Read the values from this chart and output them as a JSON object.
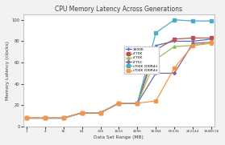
{
  "title": "CPU Memory Latency Across Generations",
  "xlabel": "Data Set Range (MB)",
  "ylabel": "Memory Latency (clocks)",
  "x_labels": [
    "1",
    "4",
    "16",
    "64",
    "256",
    "1024",
    "4096",
    "16384",
    "65536",
    "262144",
    "1048576"
  ],
  "x_values": [
    1,
    4,
    16,
    64,
    256,
    1024,
    4096,
    16384,
    65536,
    262144,
    1048576
  ],
  "series": [
    {
      "label": "2600K",
      "color": "#4472C4",
      "marker": "+",
      "markersize": 3.0,
      "values": [
        8,
        8,
        8,
        13,
        13,
        22,
        22,
        76,
        80,
        80,
        82
      ]
    },
    {
      "label": "i770K",
      "color": "#C0504D",
      "marker": "s",
      "markersize": 2.5,
      "values": [
        8,
        8,
        8,
        13,
        13,
        22,
        22,
        72,
        82,
        83,
        83
      ]
    },
    {
      "label": "i770K",
      "color": "#9BBB59",
      "marker": "^",
      "markersize": 2.5,
      "values": [
        8,
        8,
        8,
        13,
        13,
        22,
        22,
        63,
        75,
        76,
        78
      ]
    },
    {
      "label": "i775C",
      "color": "#8064A2",
      "marker": "D",
      "markersize": 2.0,
      "values": [
        8,
        8,
        8,
        13,
        13,
        22,
        22,
        50,
        50,
        78,
        79
      ]
    },
    {
      "label": "i700K (DDR4i)",
      "color": "#4BACC6",
      "marker": "s",
      "markersize": 2.5,
      "values": [
        8,
        8,
        8,
        13,
        13,
        22,
        22,
        88,
        100,
        99,
        99
      ]
    },
    {
      "label": "i700K (DDR4i)",
      "color": "#F79646",
      "marker": "s",
      "markersize": 2.5,
      "values": [
        8,
        8,
        8,
        13,
        13,
        22,
        22,
        24,
        55,
        76,
        79
      ]
    }
  ],
  "ylim": [
    0,
    105
  ],
  "yticks": [
    0,
    20,
    40,
    60,
    80,
    100
  ],
  "background_color": "#f2f2f2",
  "plot_bg_color": "#ffffff",
  "grid_color": "#ffffff"
}
